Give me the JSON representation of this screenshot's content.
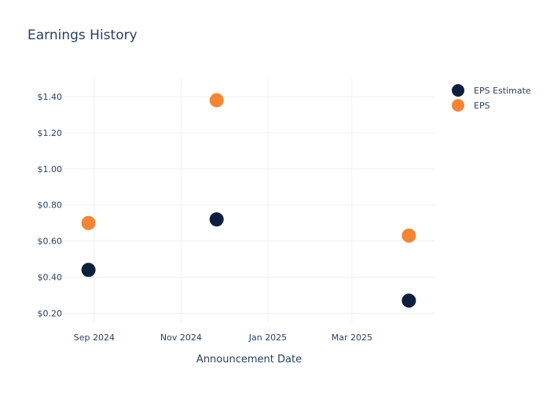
{
  "chart_data": {
    "type": "scatter",
    "title": "Earnings History",
    "xlabel": "Announcement Date",
    "ylabel": "",
    "x_ticks": [
      "2024-09-01",
      "2024-11-01",
      "2025-01-01",
      "2025-03-01"
    ],
    "x_tick_labels": [
      "Sep 2024",
      "Nov 2024",
      "Jan 2025",
      "Mar 2025"
    ],
    "xlim": [
      "2024-08-10",
      "2025-04-28"
    ],
    "ylim": [
      0.15,
      1.5
    ],
    "y_ticks": [
      0.2,
      0.4,
      0.6,
      0.8,
      1.0,
      1.2,
      1.4
    ],
    "y_tick_labels": [
      "$0.20",
      "$0.40",
      "$0.60",
      "$0.80",
      "$1.00",
      "$1.20",
      "$1.40"
    ],
    "grid": true,
    "legend_position": "top-right",
    "series": [
      {
        "name": "EPS Estimate",
        "color": "#0d1f3c",
        "points": [
          {
            "x": "2024-08-28",
            "y": 0.44
          },
          {
            "x": "2024-11-26",
            "y": 0.72
          },
          {
            "x": "2025-04-10",
            "y": 0.27
          }
        ]
      },
      {
        "name": "EPS",
        "color": "#f58536",
        "points": [
          {
            "x": "2024-08-28",
            "y": 0.7
          },
          {
            "x": "2024-11-26",
            "y": 1.38
          },
          {
            "x": "2025-04-10",
            "y": 0.63
          }
        ]
      }
    ]
  }
}
